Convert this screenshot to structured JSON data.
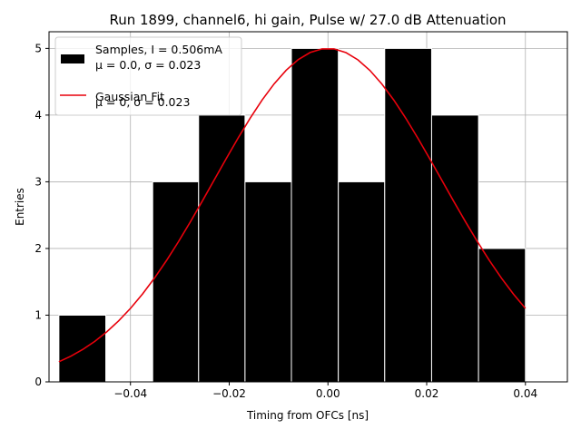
{
  "chart_data": {
    "type": "bar",
    "title": "Run 1899, channel6, hi gain, Pulse w/ 27.0 dB Attenuation",
    "xlabel": "Timing from OFCs [ns]",
    "ylabel": "Entries",
    "xlim": [
      -0.0565,
      0.0485
    ],
    "ylim": [
      0,
      5.25
    ],
    "xticks": [
      -0.04,
      -0.02,
      0.0,
      0.02,
      0.04
    ],
    "xtick_labels": [
      "−0.04",
      "−0.02",
      "0.00",
      "0.02",
      "0.04"
    ],
    "yticks": [
      0,
      1,
      2,
      3,
      4,
      5
    ],
    "ytick_labels": [
      "0",
      "1",
      "2",
      "3",
      "4",
      "5"
    ],
    "grid": true,
    "legend_position": "upper-left",
    "histogram": {
      "name": "Samples, I = 0.506mA",
      "name_line2": "μ = 0.0, σ = 0.023",
      "color": "#000000",
      "edgecolor": "#ffffff",
      "bins": [
        {
          "x0": -0.0545,
          "x1": -0.045,
          "count": 1
        },
        {
          "x0": -0.045,
          "x1": -0.0355,
          "count": 0
        },
        {
          "x0": -0.0355,
          "x1": -0.0262,
          "count": 3
        },
        {
          "x0": -0.0262,
          "x1": -0.0168,
          "count": 4
        },
        {
          "x0": -0.0168,
          "x1": -0.0074,
          "count": 3
        },
        {
          "x0": -0.0074,
          "x1": 0.0021,
          "count": 5
        },
        {
          "x0": 0.0021,
          "x1": 0.0115,
          "count": 3
        },
        {
          "x0": 0.0115,
          "x1": 0.021,
          "count": 5
        },
        {
          "x0": 0.021,
          "x1": 0.0305,
          "count": 4
        },
        {
          "x0": 0.0305,
          "x1": 0.04,
          "count": 2
        }
      ]
    },
    "fit": {
      "name": "Gaussian Fit",
      "name_line2": "μ = 0, σ = 0.023",
      "color": "#e8000b",
      "x_range": [
        -0.0545,
        0.04
      ],
      "amplitude": 5.0,
      "mu": 0.0,
      "sigma": 0.023,
      "samples": 40
    }
  }
}
